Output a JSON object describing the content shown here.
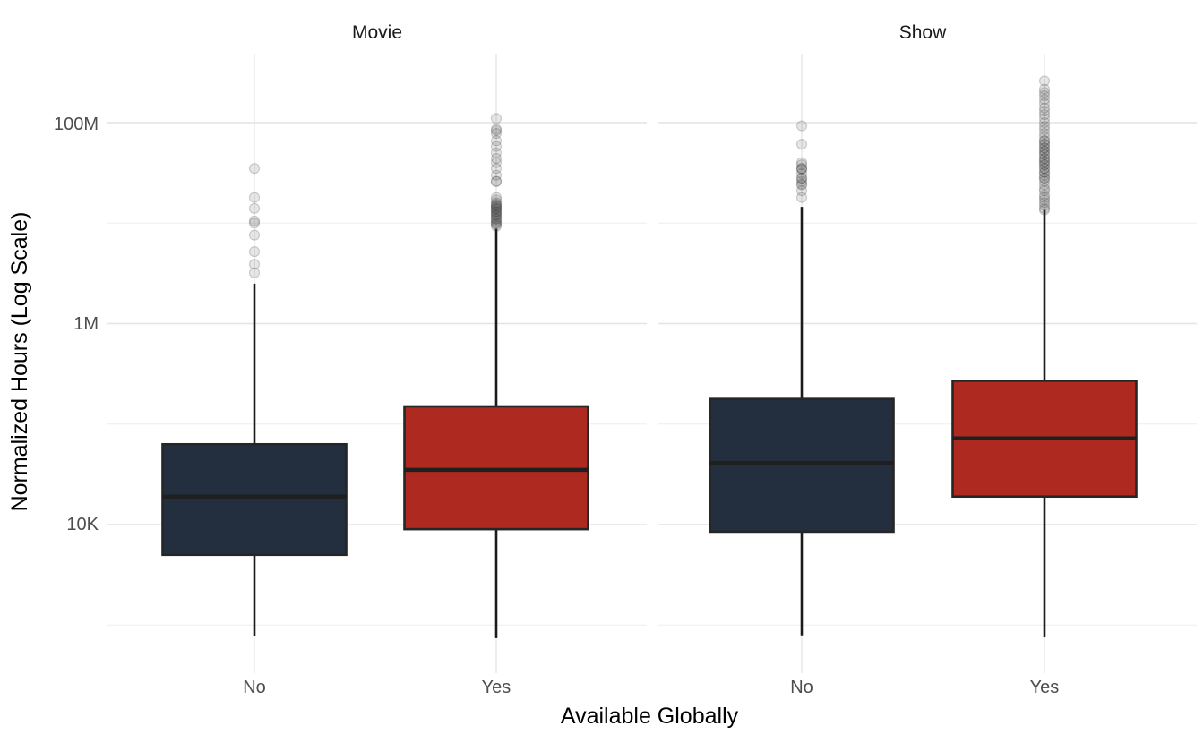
{
  "chart_data": {
    "type": "boxplot",
    "title": "",
    "xlabel": "Available Globally",
    "ylabel": "Normalized Hours (Log Scale)",
    "y_scale": "log10",
    "ylim": [
      400,
      450000000
    ],
    "grid": "on",
    "legend": "none",
    "x_categories": [
      "No",
      "Yes"
    ],
    "y_ticks": [
      {
        "value": 10000,
        "label": "10K"
      },
      {
        "value": 1000000,
        "label": "1M"
      },
      {
        "value": 100000000,
        "label": "100M"
      }
    ],
    "y_minor_gridlines": [
      1000,
      100000,
      10000000
    ],
    "colors": {
      "no_box": "#232F3E",
      "yes_box": "#AE2A20",
      "box_border": "#262626",
      "median": "#1F1F1F",
      "whisker": "#1B1B1B",
      "outlier": "#3A3A3A",
      "grid_major": "#E4E4E4",
      "grid_minor": "#F0F0F0"
    },
    "facets": [
      {
        "label": "Movie",
        "boxes": [
          {
            "category": "No",
            "color_key": "no_box",
            "whisker_low": 770,
            "q1": 5000,
            "median": 19000,
            "q3": 63000,
            "whisker_high": 2500000,
            "outliers": [
              3200000,
              3900000,
              5200000,
              7600000,
              10000000,
              10500000,
              14000000,
              18000000,
              35000000
            ]
          },
          {
            "category": "Yes",
            "color_key": "yes_box",
            "whisker_low": 740,
            "q1": 9000,
            "median": 35000,
            "q3": 150000,
            "whisker_high": 8800000,
            "outliers": [
              9300000,
              9600000,
              10000000,
              10000000,
              10500000,
              11000000,
              11000000,
              11500000,
              12000000,
              12000000,
              12500000,
              13000000,
              13000000,
              13500000,
              14000000,
              14000000,
              14500000,
              15000000,
              15000000,
              15500000,
              16000000,
              17000000,
              18000000,
              26000000,
              26000000,
              30000000,
              35000000,
              40000000,
              44000000,
              50000000,
              58000000,
              66000000,
              78000000,
              83000000,
              86000000,
              110000000
            ]
          }
        ]
      },
      {
        "label": "Show",
        "boxes": [
          {
            "category": "No",
            "color_key": "no_box",
            "whisker_low": 790,
            "q1": 8500,
            "median": 41000,
            "q3": 178000,
            "whisker_high": 14500000,
            "outliers": [
              18000000,
              21000000,
              24000000,
              24500000,
              26000000,
              28000000,
              28000000,
              31000000,
              34000000,
              35000000,
              35000000,
              38000000,
              40000000,
              61000000,
              93000000
            ]
          },
          {
            "category": "Yes",
            "color_key": "yes_box",
            "whisker_low": 755,
            "q1": 19000,
            "median": 72000,
            "q3": 270000,
            "whisker_high": 13500000,
            "outliers": [
              13500000,
              14000000,
              15000000,
              16000000,
              17000000,
              18000000,
              19000000,
              21000000,
              22000000,
              24000000,
              26000000,
              28000000,
              28000000,
              30000000,
              32000000,
              32000000,
              35000000,
              35000000,
              38000000,
              38000000,
              41000000,
              41000000,
              44000000,
              44000000,
              48000000,
              48000000,
              52000000,
              52000000,
              56000000,
              56000000,
              61000000,
              61000000,
              66000000,
              66000000,
              72000000,
              78000000,
              85000000,
              92000000,
              100000000,
              110000000,
              120000000,
              130000000,
              140000000,
              155000000,
              170000000,
              185000000,
              200000000,
              215000000,
              260000000
            ]
          }
        ]
      }
    ]
  }
}
